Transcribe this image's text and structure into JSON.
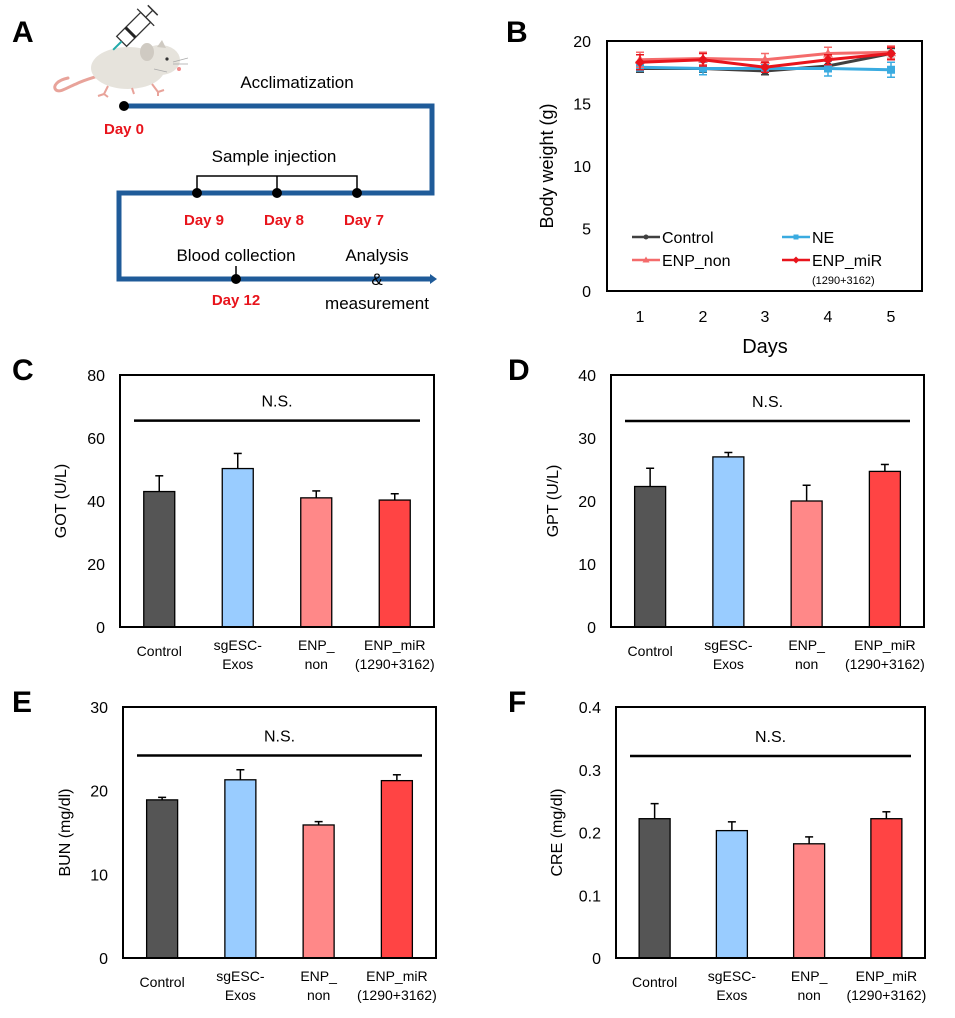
{
  "panel_a": {
    "label": "A",
    "acclimatization": "Acclimatization",
    "sample_injection": "Sample injection",
    "blood_collection": "Blood collection",
    "analysis_line1": "Analysis",
    "analysis_line2": "&",
    "analysis_line3": "measurement",
    "day0": "Day 0",
    "day9": "Day 9",
    "day8": "Day 8",
    "day7": "Day 7",
    "day12": "Day 12",
    "timeline_color": "#1f5b99",
    "day_label_color": "#e8141c",
    "illustration": "mouse-with-syringe-icon"
  },
  "chart_data": [
    {
      "panel": "B",
      "type": "line",
      "title": "",
      "xlabel": "Days",
      "ylabel": "Body weight (g)",
      "x": [
        1,
        2,
        3,
        4,
        5
      ],
      "xticks": [
        "1",
        "2",
        "3",
        "4",
        "5"
      ],
      "ylim": [
        0,
        20
      ],
      "yticks": [
        "0",
        "5",
        "10",
        "15",
        "20"
      ],
      "grid": false,
      "legend_position": "bottom-inside",
      "series": [
        {
          "name": "Control",
          "color": "#404040",
          "marker": "circle",
          "values": [
            17.8,
            17.8,
            17.6,
            18.0,
            19.0
          ],
          "errors": [
            0.3,
            0.3,
            0.3,
            0.4,
            0.4
          ]
        },
        {
          "name": "NE",
          "color": "#3aabe0",
          "marker": "square",
          "values": [
            17.9,
            17.8,
            17.8,
            17.8,
            17.7
          ],
          "errors": [
            0.3,
            0.5,
            0.3,
            0.6,
            0.6
          ]
        },
        {
          "name": "ENP_non",
          "color": "#f46b6b",
          "marker": "triangle",
          "values": [
            18.5,
            18.6,
            18.5,
            19.0,
            19.1
          ],
          "errors": [
            0.6,
            0.5,
            0.5,
            0.5,
            0.5
          ]
        },
        {
          "name": "ENP_miR",
          "name_sub": "(1290+3162)",
          "color": "#e8141c",
          "marker": "diamond",
          "values": [
            18.3,
            18.5,
            17.9,
            18.5,
            19.0
          ],
          "errors": [
            0.6,
            0.5,
            0.4,
            0.4,
            0.5
          ]
        }
      ]
    },
    {
      "panel": "C",
      "type": "bar",
      "ylabel": "GOT (U/L)",
      "ylim": [
        0,
        80
      ],
      "yticks": [
        "0",
        "20",
        "40",
        "60",
        "80"
      ],
      "categories": [
        [
          "Control"
        ],
        [
          "sgESC-",
          "Exos"
        ],
        [
          "ENP_",
          "non"
        ],
        [
          "ENP_miR",
          "(1290+3162)"
        ]
      ],
      "values": [
        43,
        50.3,
        41,
        40.3
      ],
      "errors": [
        5,
        4.8,
        2.2,
        2
      ],
      "colors": [
        "#555555",
        "#99ccff",
        "#ff8888",
        "#ff4444"
      ],
      "annotation": "N.S.",
      "sig_line_value": 65.5
    },
    {
      "panel": "D",
      "type": "bar",
      "ylabel": "GPT (U/L)",
      "ylim": [
        0,
        40
      ],
      "yticks": [
        "0",
        "10",
        "20",
        "30",
        "40"
      ],
      "categories": [
        [
          "Control"
        ],
        [
          "sgESC-",
          "Exos"
        ],
        [
          "ENP_",
          "non"
        ],
        [
          "ENP_miR",
          "(1290+3162)"
        ]
      ],
      "values": [
        22.3,
        27,
        20,
        24.7
      ],
      "errors": [
        2.9,
        0.7,
        2.5,
        1.1
      ],
      "colors": [
        "#555555",
        "#99ccff",
        "#ff8888",
        "#ff4444"
      ],
      "annotation": "N.S.",
      "sig_line_value": 32.7
    },
    {
      "panel": "E",
      "type": "bar",
      "ylabel": "BUN (mg/dl)",
      "ylim": [
        0,
        30
      ],
      "yticks": [
        "0",
        "10",
        "20",
        "30"
      ],
      "categories": [
        [
          "Control"
        ],
        [
          "sgESC-",
          "Exos"
        ],
        [
          "ENP_",
          "non"
        ],
        [
          "ENP_miR",
          "(1290+3162)"
        ]
      ],
      "values": [
        18.9,
        21.3,
        15.9,
        21.2
      ],
      "errors": [
        0.3,
        1.2,
        0.4,
        0.7
      ],
      "colors": [
        "#555555",
        "#99ccff",
        "#ff8888",
        "#ff4444"
      ],
      "annotation": "N.S.",
      "sig_line_value": 24.2
    },
    {
      "panel": "F",
      "type": "bar",
      "ylabel": "CRE (mg/dl)",
      "ylim": [
        0,
        0.4
      ],
      "yticks": [
        "0",
        "0.1",
        "0.2",
        "0.3",
        "0.4"
      ],
      "categories": [
        [
          "Control"
        ],
        [
          "sgESC-",
          "Exos"
        ],
        [
          "ENP_",
          "non"
        ],
        [
          "ENP_miR",
          "(1290+3162)"
        ]
      ],
      "values": [
        0.222,
        0.203,
        0.182,
        0.222
      ],
      "errors": [
        0.024,
        0.014,
        0.011,
        0.011
      ],
      "colors": [
        "#555555",
        "#99ccff",
        "#ff8888",
        "#ff4444"
      ],
      "annotation": "N.S.",
      "sig_line_value": 0.322
    }
  ]
}
